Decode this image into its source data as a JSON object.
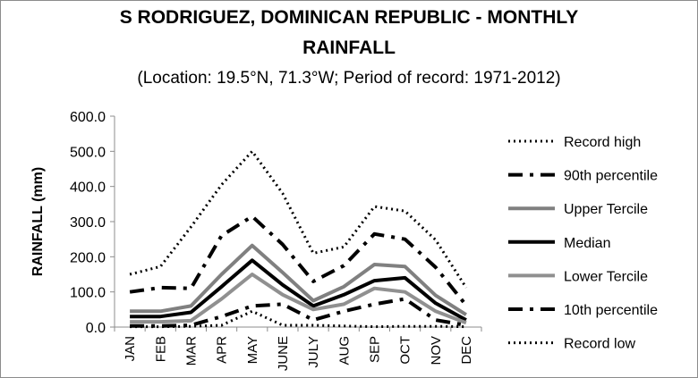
{
  "chart_data": {
    "type": "line",
    "title_line1": "S RODRIGUEZ, DOMINICAN REPUBLIC - MONTHLY",
    "title_line2": "RAINFALL",
    "subtitle": "(Location: 19.5°N, 71.3°W; Period of record: 1971-2012)",
    "xlabel": "",
    "ylabel": "RAINFALL (mm)",
    "ylim": [
      0,
      600
    ],
    "yticks": [
      "0.0",
      "100.0",
      "200.0",
      "300.0",
      "400.0",
      "500.0",
      "600.0"
    ],
    "categories": [
      "JAN",
      "FEB",
      "MAR",
      "APR",
      "MAY",
      "JUNE",
      "JULY",
      "AUG",
      "SEP",
      "OCT",
      "NOV",
      "DEC"
    ],
    "legend_position": "right",
    "grid": false,
    "series": [
      {
        "name": "Record high",
        "style": "dotted",
        "color": "#000000",
        "values": [
          150,
          172,
          285,
          405,
          500,
          380,
          210,
          228,
          343,
          330,
          248,
          112
        ]
      },
      {
        "name": "90th percentile",
        "style": "dashdot",
        "color": "#000000",
        "values": [
          100,
          112,
          110,
          260,
          315,
          235,
          130,
          175,
          265,
          250,
          170,
          62
        ]
      },
      {
        "name": "Upper Tercile",
        "style": "solid",
        "color": "#808080",
        "values": [
          45,
          45,
          60,
          150,
          232,
          155,
          75,
          115,
          178,
          172,
          90,
          35
        ]
      },
      {
        "name": "Median",
        "style": "solid",
        "color": "#000000",
        "values": [
          30,
          30,
          42,
          115,
          190,
          120,
          60,
          92,
          132,
          140,
          68,
          20
        ]
      },
      {
        "name": "Lower Tercile",
        "style": "solid",
        "color": "#909090",
        "values": [
          15,
          15,
          18,
          80,
          150,
          92,
          50,
          65,
          110,
          100,
          45,
          12
        ]
      },
      {
        "name": "10th percentile",
        "style": "dashdot",
        "color": "#000000",
        "values": [
          3,
          3,
          5,
          30,
          60,
          65,
          20,
          45,
          65,
          80,
          20,
          5
        ]
      },
      {
        "name": "Record low",
        "style": "dotted",
        "color": "#000000",
        "values": [
          1,
          1,
          2,
          5,
          45,
          5,
          5,
          3,
          1,
          2,
          2,
          1
        ]
      }
    ]
  }
}
